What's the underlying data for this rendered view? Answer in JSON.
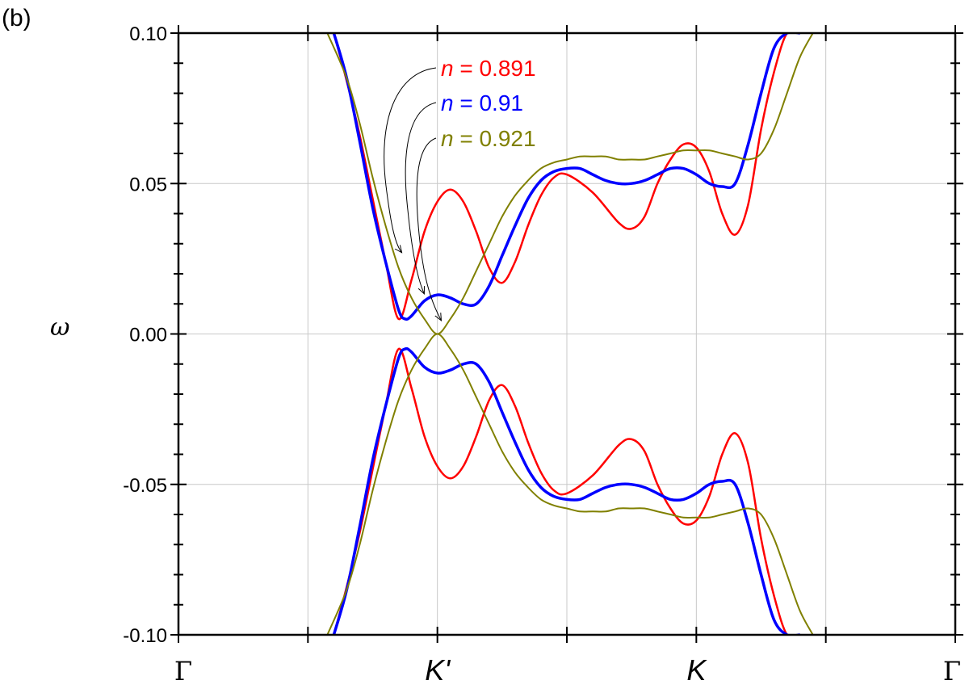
{
  "panel_label": "(b)",
  "chart_data": {
    "type": "line",
    "title": "",
    "xlabel": "",
    "ylabel": "ω",
    "xlim": [
      0,
      6
    ],
    "ylim": [
      -0.1,
      0.1
    ],
    "grid": true,
    "y_ticks": [
      {
        "value": 0.1,
        "label": "0.10"
      },
      {
        "value": 0.05,
        "label": "0.05"
      },
      {
        "value": 0.0,
        "label": "0.00"
      },
      {
        "value": -0.05,
        "label": "-0.05"
      },
      {
        "value": -0.1,
        "label": "-0.10"
      }
    ],
    "x_ticks": [
      {
        "value": 0,
        "label": "Γ",
        "style": "serif"
      },
      {
        "value": 2,
        "label": "K'",
        "style": "italic"
      },
      {
        "value": 4,
        "label": "K",
        "style": "italic"
      },
      {
        "value": 6,
        "label": "Γ",
        "style": "serif"
      }
    ],
    "x_minor_ticks": [
      1,
      3,
      5
    ],
    "series": [
      {
        "name": "n = 0.891",
        "legend_var": "n",
        "legend_value": "= 0.891",
        "color": "#ff0000",
        "x": [
          1.2,
          1.3,
          1.4,
          1.5,
          1.6,
          1.7,
          1.8,
          1.9,
          2.0,
          2.1,
          2.2,
          2.3,
          2.4,
          2.5,
          2.6,
          2.7,
          2.8,
          2.9,
          3.0,
          3.2,
          3.4,
          3.5,
          3.6,
          3.7,
          3.8,
          3.9,
          4.0,
          4.1,
          4.2,
          4.3,
          4.4,
          4.5,
          4.6,
          4.7,
          4.8
        ],
        "y": [
          0.1,
          0.084,
          0.066,
          0.045,
          0.024,
          0.005,
          0.018,
          0.034,
          0.044,
          0.048,
          0.044,
          0.034,
          0.022,
          0.017,
          0.024,
          0.036,
          0.046,
          0.052,
          0.053,
          0.047,
          0.037,
          0.035,
          0.039,
          0.05,
          0.058,
          0.063,
          0.062,
          0.054,
          0.04,
          0.033,
          0.043,
          0.068,
          0.087,
          0.1,
          0.1
        ]
      },
      {
        "name": "n = 0.91",
        "legend_var": "n",
        "legend_value": "= 0.91",
        "color": "#0000ff",
        "x": [
          1.2,
          1.3,
          1.4,
          1.5,
          1.6,
          1.7,
          1.75,
          1.8,
          1.9,
          2.0,
          2.1,
          2.2,
          2.3,
          2.4,
          2.5,
          2.6,
          2.7,
          2.8,
          2.9,
          3.0,
          3.1,
          3.2,
          3.3,
          3.4,
          3.5,
          3.6,
          3.7,
          3.8,
          3.9,
          4.0,
          4.1,
          4.2,
          4.3,
          4.4,
          4.5,
          4.6,
          4.7,
          4.8
        ],
        "y": [
          0.1,
          0.085,
          0.064,
          0.042,
          0.024,
          0.008,
          0.005,
          0.006,
          0.011,
          0.013,
          0.012,
          0.01,
          0.01,
          0.016,
          0.026,
          0.036,
          0.045,
          0.051,
          0.054,
          0.055,
          0.055,
          0.053,
          0.051,
          0.05,
          0.05,
          0.051,
          0.053,
          0.055,
          0.055,
          0.053,
          0.05,
          0.049,
          0.05,
          0.063,
          0.08,
          0.095,
          0.1,
          0.1
        ]
      },
      {
        "name": "n = 0.921",
        "legend_var": "n",
        "legend_value": "= 0.921",
        "color": "#808000",
        "x": [
          1.15,
          1.3,
          1.4,
          1.5,
          1.6,
          1.7,
          1.8,
          1.9,
          2.0,
          2.1,
          2.2,
          2.3,
          2.4,
          2.5,
          2.6,
          2.7,
          2.8,
          2.9,
          3.0,
          3.1,
          3.2,
          3.3,
          3.4,
          3.5,
          3.6,
          3.7,
          3.8,
          3.9,
          4.0,
          4.1,
          4.2,
          4.3,
          4.4,
          4.5,
          4.6,
          4.7,
          4.8,
          4.9
        ],
        "y": [
          0.1,
          0.085,
          0.07,
          0.052,
          0.036,
          0.022,
          0.012,
          0.005,
          0.0,
          0.005,
          0.012,
          0.021,
          0.03,
          0.039,
          0.046,
          0.051,
          0.055,
          0.057,
          0.058,
          0.059,
          0.059,
          0.059,
          0.058,
          0.058,
          0.058,
          0.059,
          0.06,
          0.061,
          0.061,
          0.061,
          0.06,
          0.059,
          0.058,
          0.06,
          0.068,
          0.08,
          0.092,
          0.1
        ]
      }
    ],
    "symmetry_note": "",
    "mirror_about_zero": true
  }
}
